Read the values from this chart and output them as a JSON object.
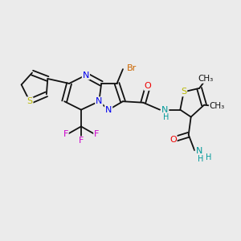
{
  "bg": "#ebebeb",
  "bond_lw": 1.3,
  "fig_w": 3.0,
  "fig_h": 3.0,
  "dpi": 100,
  "xlim": [
    0,
    10
  ],
  "ylim": [
    0,
    10
  ],
  "colors": {
    "bond": "#111111",
    "S": "#b8b800",
    "N": "#0000ee",
    "Br": "#cc6600",
    "O": "#ee0000",
    "F": "#cc00cc",
    "NH": "#009999",
    "text": "#111111"
  }
}
